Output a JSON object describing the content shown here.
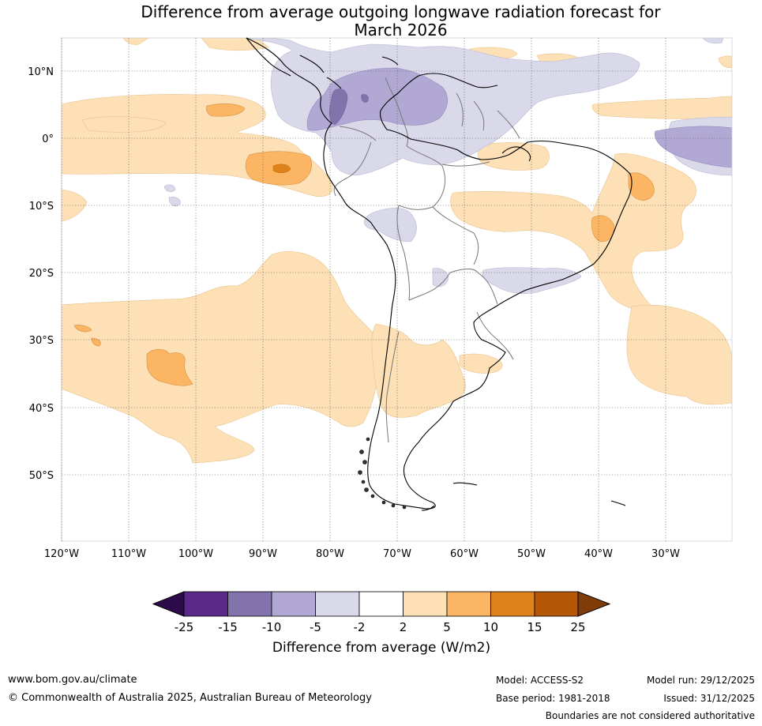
{
  "title": {
    "line1": "Difference from average outgoing longwave radiation forecast for",
    "line2": "March 2026"
  },
  "map": {
    "region": "South America",
    "lat_labels": [
      "10°N",
      "0°",
      "10°S",
      "20°S",
      "30°S",
      "40°S",
      "50°S"
    ],
    "lon_labels": [
      "120°W",
      "110°W",
      "100°W",
      "90°W",
      "80°W",
      "70°W",
      "60°W",
      "50°W",
      "40°W",
      "30°W"
    ]
  },
  "legend": {
    "title": "Difference from average (W/m2)",
    "ticks": [
      "-25",
      "-15",
      "-10",
      "-5",
      "-2",
      "2",
      "5",
      "10",
      "15",
      "25"
    ],
    "colors": [
      "#2d0a4b",
      "#5a2a8a",
      "#8273ad",
      "#b1a9d3",
      "#d9d9ea",
      "#ffffff",
      "#fde0b5",
      "#fbb563",
      "#e0821b",
      "#b35807",
      "#7f3c08"
    ]
  },
  "footer": {
    "website": "www.bom.gov.au/climate",
    "copyright": "© Commonwealth of Australia 2025, Australian Bureau of Meteorology",
    "model": "Model: ACCESS-S2",
    "base_period": "Base period: 1981-2018",
    "model_run": "Model run: 29/12/2025",
    "issued": "Issued: 31/12/2025",
    "disclaimer": "Boundaries are not considered authoritative"
  }
}
